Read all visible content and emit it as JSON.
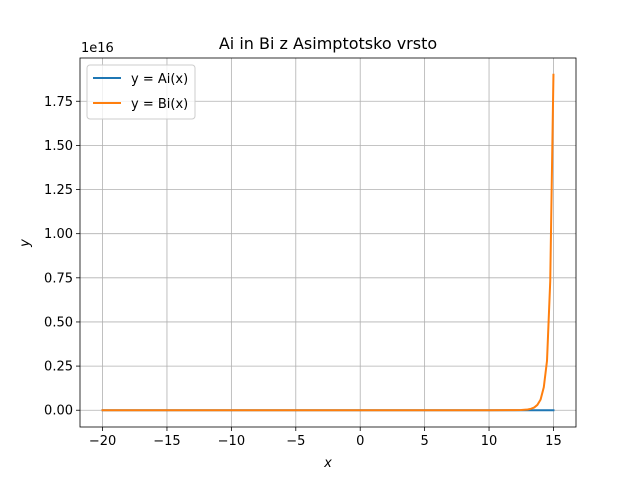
{
  "chart_data": {
    "type": "line",
    "title": "Ai in Bi z Asimptotsko vrsto",
    "xlabel": "x",
    "ylabel": "y",
    "y_offset_label": "1e16",
    "xlim": [
      -21.75,
      16.75
    ],
    "ylim": [
      -0.095,
      1.995
    ],
    "x_ticks": [
      -20,
      -15,
      -10,
      -5,
      0,
      5,
      10,
      15
    ],
    "x_tick_labels": [
      "−20",
      "−15",
      "−10",
      "−5",
      "0",
      "5",
      "10",
      "15"
    ],
    "y_ticks": [
      0.0,
      0.25,
      0.5,
      0.75,
      1.0,
      1.25,
      1.5,
      1.75
    ],
    "y_tick_labels": [
      "0.00",
      "0.25",
      "0.50",
      "0.75",
      "1.00",
      "1.25",
      "1.50",
      "1.75"
    ],
    "grid": true,
    "legend_position": "top-left",
    "series": [
      {
        "name": "y = Ai(x)",
        "color": "#1f77b4",
        "x": [
          -20,
          15
        ],
        "y": [
          0,
          0
        ]
      },
      {
        "name": "y = Bi(x)",
        "color": "#ff7f0e",
        "x": [
          -20,
          0,
          10,
          12,
          12.5,
          13,
          13.25,
          13.5,
          13.75,
          14,
          14.25,
          14.5,
          14.75,
          15
        ],
        "y": [
          0,
          0,
          0,
          0.0005,
          0.0015,
          0.004,
          0.008,
          0.015,
          0.03,
          0.06,
          0.13,
          0.28,
          0.73,
          1.9
        ]
      }
    ]
  }
}
